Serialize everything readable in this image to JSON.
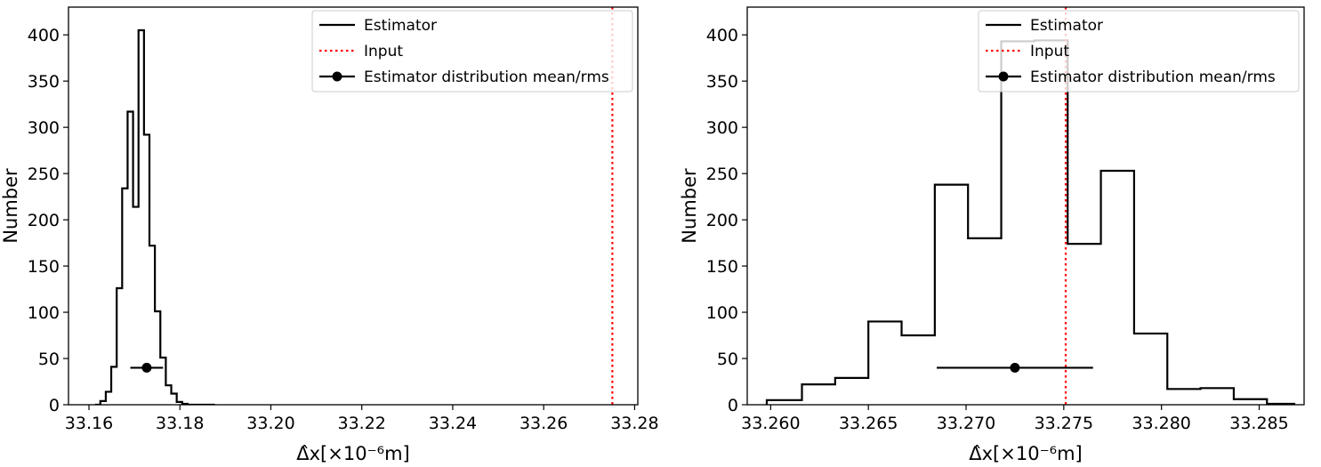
{
  "chart_data": [
    {
      "type": "histogram",
      "xlabel": "Δ̂x[×10⁻⁶m]",
      "ylabel": "Number",
      "xlim": [
        33.1555,
        33.2807
      ],
      "ylim": [
        0,
        430
      ],
      "xticks": [
        33.16,
        33.18,
        33.2,
        33.22,
        33.24,
        33.26,
        33.28
      ],
      "xtick_labels": [
        "33.16",
        "33.18",
        "33.20",
        "33.22",
        "33.24",
        "33.26",
        "33.28"
      ],
      "yticks": [
        0,
        50,
        100,
        150,
        200,
        250,
        300,
        350,
        400
      ],
      "ytick_labels": [
        "0",
        "50",
        "100",
        "150",
        "200",
        "250",
        "300",
        "350",
        "400"
      ],
      "bin_edges": [
        33.1613,
        33.1625,
        33.1637,
        33.1649,
        33.1661,
        33.1673,
        33.1685,
        33.1697,
        33.1709,
        33.1721,
        33.1733,
        33.1745,
        33.1757,
        33.1769,
        33.1781,
        33.1793,
        33.1805,
        33.1817,
        33.1829,
        33.1841,
        33.1853,
        33.1865,
        33.1877
      ],
      "counts": [
        0,
        4,
        14,
        41,
        126,
        234,
        317,
        214,
        405,
        292,
        172,
        101,
        51,
        21,
        12,
        3,
        1,
        0,
        0,
        0,
        0,
        0
      ],
      "series": [
        {
          "name": "Estimator",
          "style": "step",
          "color": "#000000"
        },
        {
          "name": "Input",
          "style": "vline",
          "x": 33.2751,
          "color": "#ff0000"
        },
        {
          "name": "Estimator distribution mean/rms",
          "style": "errorbar",
          "color": "#000000",
          "mean": 33.1727,
          "rms": 0.0036,
          "y": 40
        }
      ],
      "legend": {
        "location": "top-right"
      }
    },
    {
      "type": "histogram",
      "xlabel": "Δ̂x[×10⁻⁶m]",
      "ylabel": "Number",
      "xlim": [
        33.2588,
        33.2873
      ],
      "ylim": [
        0,
        430
      ],
      "xticks": [
        33.26,
        33.265,
        33.27,
        33.275,
        33.28,
        33.285
      ],
      "xtick_labels": [
        "33.260",
        "33.265",
        "33.270",
        "33.275",
        "33.280",
        "33.285"
      ],
      "yticks": [
        0,
        50,
        100,
        150,
        200,
        250,
        300,
        350,
        400
      ],
      "ytick_labels": [
        "0",
        "50",
        "100",
        "150",
        "200",
        "250",
        "300",
        "350",
        "400"
      ],
      "bin_edges": [
        33.2598,
        33.2616,
        33.2633,
        33.265,
        33.2667,
        33.2684,
        33.2701,
        33.2718,
        33.2735,
        33.2752,
        33.2769,
        33.2786,
        33.2803,
        33.282,
        33.2837,
        33.2854,
        33.2868
      ],
      "counts": [
        5,
        22,
        29,
        90,
        75,
        238,
        180,
        393,
        394,
        174,
        253,
        77,
        17,
        18,
        6,
        1
      ],
      "series": [
        {
          "name": "Estimator",
          "style": "step",
          "color": "#000000"
        },
        {
          "name": "Input",
          "style": "vline",
          "x": 33.2751,
          "color": "#ff0000"
        },
        {
          "name": "Estimator distribution mean/rms",
          "style": "errorbar",
          "color": "#000000",
          "mean": 33.2725,
          "rms": 0.004,
          "y": 40
        }
      ],
      "legend": {
        "location": "top-right"
      }
    }
  ]
}
